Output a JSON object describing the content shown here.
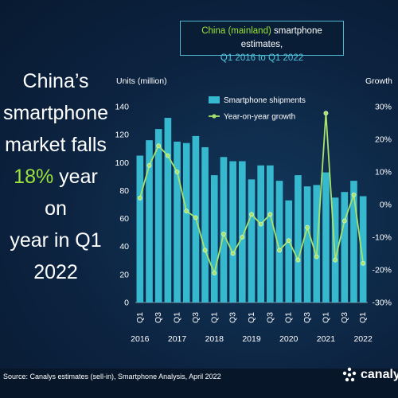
{
  "headline": {
    "line1": "China’s",
    "line2": "smartphone",
    "line3": "market falls",
    "highlight": "18%",
    "line4_rest": " year on",
    "line5": "year in Q1",
    "line6": "2022"
  },
  "title": {
    "part1": "China (mainland)",
    "part2": " smartphone estimates,",
    "part3": "Q1 2016 to Q1 2022"
  },
  "source": "Source: Canalys estimates (sell-in), Smartphone Analysis, April 2022",
  "logo_text": "canalys",
  "colors": {
    "bar": "#36b8cf",
    "line": "#a6e36b",
    "highlight": "#9be33a"
  },
  "chart_data": {
    "type": "bar",
    "left_axis_title": "Units (million)",
    "right_axis_title": "Growth",
    "ylim": [
      0,
      140
    ],
    "y_ticks": [
      0,
      20,
      40,
      60,
      80,
      100,
      120,
      140
    ],
    "y2lim": [
      -30,
      30
    ],
    "y2_ticks": [
      "-30%",
      "-20%",
      "-10%",
      "0%",
      "10%",
      "20%",
      "30%"
    ],
    "categories": [
      "Q1 2016",
      "Q2 2016",
      "Q3 2016",
      "Q4 2016",
      "Q1 2017",
      "Q2 2017",
      "Q3 2017",
      "Q4 2017",
      "Q1 2018",
      "Q2 2018",
      "Q3 2018",
      "Q4 2018",
      "Q1 2019",
      "Q2 2019",
      "Q3 2019",
      "Q4 2019",
      "Q1 2020",
      "Q2 2020",
      "Q3 2020",
      "Q4 2020",
      "Q1 2021",
      "Q2 2021",
      "Q3 2021",
      "Q4 2021",
      "Q1 2022"
    ],
    "x_tick_labels": [
      {
        "index": 0,
        "quarter": "Q1",
        "year": "2016"
      },
      {
        "index": 2,
        "quarter": "Q3",
        "year": ""
      },
      {
        "index": 4,
        "quarter": "Q1",
        "year": "2017"
      },
      {
        "index": 6,
        "quarter": "Q3",
        "year": ""
      },
      {
        "index": 8,
        "quarter": "Q1",
        "year": "2018"
      },
      {
        "index": 10,
        "quarter": "Q3",
        "year": ""
      },
      {
        "index": 12,
        "quarter": "Q1",
        "year": "2019"
      },
      {
        "index": 14,
        "quarter": "Q3",
        "year": ""
      },
      {
        "index": 16,
        "quarter": "Q1",
        "year": "2020"
      },
      {
        "index": 18,
        "quarter": "Q3",
        "year": ""
      },
      {
        "index": 20,
        "quarter": "Q1",
        "year": "2021"
      },
      {
        "index": 22,
        "quarter": "Q3",
        "year": ""
      },
      {
        "index": 24,
        "quarter": "Q1",
        "year": "2022"
      }
    ],
    "legend": "top-left",
    "series": [
      {
        "name": "Smartphone shipments",
        "type": "bar",
        "values": [
          105,
          116,
          124,
          132,
          115,
          114,
          119,
          111,
          91,
          104,
          101,
          101,
          88,
          98,
          98,
          87,
          73,
          91,
          83,
          84,
          93,
          75,
          79,
          87,
          76
        ]
      },
      {
        "name": "Year-on-year growth",
        "type": "line",
        "unit": "%",
        "values": [
          2,
          12,
          18,
          15,
          10,
          -2,
          -4,
          -14,
          -21,
          -9,
          -15,
          -10,
          -3,
          -6,
          -3,
          -14,
          -11,
          -17,
          -7,
          -16,
          28,
          -17,
          -5,
          3,
          -18
        ]
      }
    ]
  }
}
